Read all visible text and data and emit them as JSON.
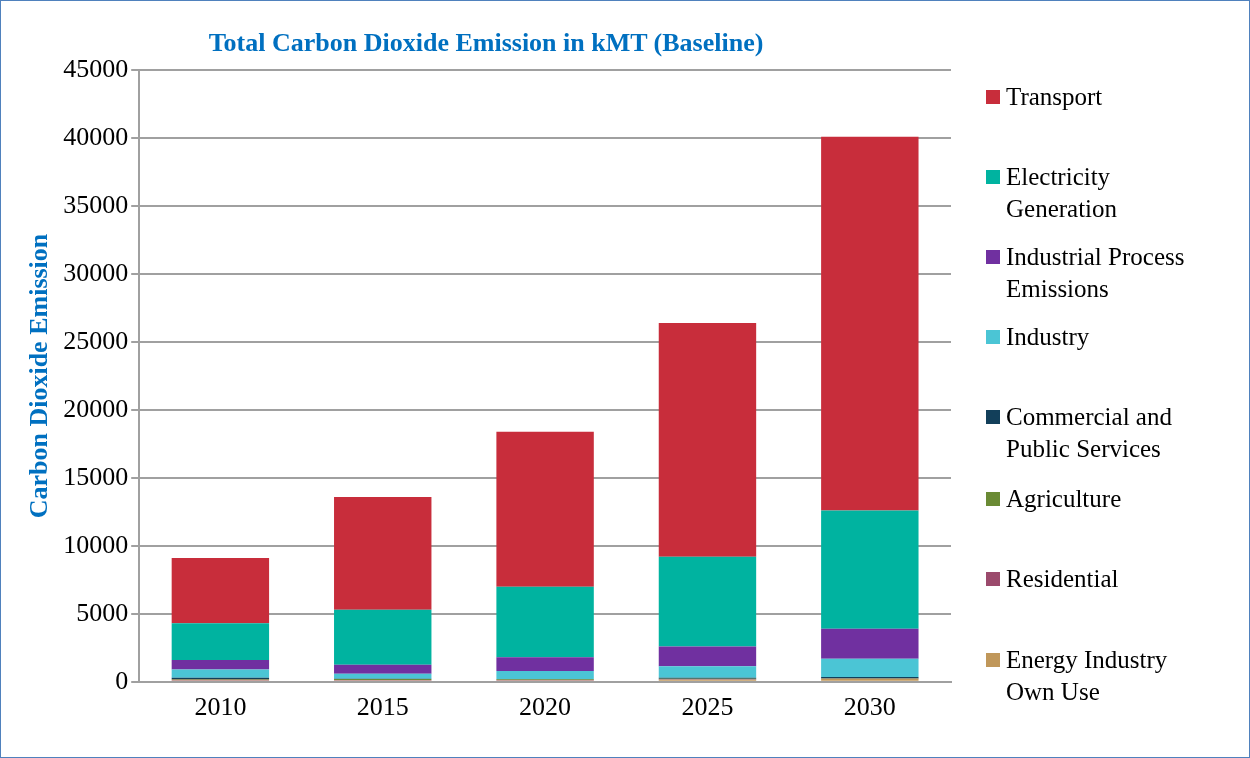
{
  "chart_data": {
    "type": "bar",
    "title": "Total Carbon Dioxide Emission in kMT (Baseline)",
    "ylabel": "Carbon Dioxide Emission",
    "categories": [
      "2010",
      "2015",
      "2020",
      "2025",
      "2030"
    ],
    "stacked": true,
    "ylim": [
      0,
      45000
    ],
    "yticks": [
      0,
      5000,
      10000,
      15000,
      20000,
      25000,
      30000,
      35000,
      40000,
      45000
    ],
    "grid": "y",
    "legend": "right",
    "series": [
      {
        "name": "Energy Industry Own Use",
        "color": "#c0975a",
        "values": [
          100,
          100,
          100,
          150,
          200
        ]
      },
      {
        "name": "Residential",
        "color": "#9b4a6c",
        "values": [
          50,
          30,
          30,
          30,
          30
        ]
      },
      {
        "name": "Agriculture",
        "color": "#6a8a34",
        "values": [
          50,
          70,
          60,
          50,
          40
        ]
      },
      {
        "name": "Commercial and Public Services",
        "color": "#123f5a",
        "values": [
          100,
          20,
          10,
          70,
          80
        ]
      },
      {
        "name": "Industry",
        "color": "#4bc5d5",
        "values": [
          600,
          380,
          600,
          850,
          1350
        ]
      },
      {
        "name": "Industrial Process Emissions",
        "color": "#7030a0",
        "values": [
          700,
          650,
          1000,
          1450,
          2200
        ]
      },
      {
        "name": "Electricity Generation",
        "color": "#00b3a0",
        "values": [
          2700,
          4050,
          5200,
          6600,
          8700
        ]
      },
      {
        "name": "Transport",
        "color": "#c82d3b",
        "values": [
          4800,
          8300,
          11400,
          17200,
          27500
        ]
      }
    ]
  }
}
